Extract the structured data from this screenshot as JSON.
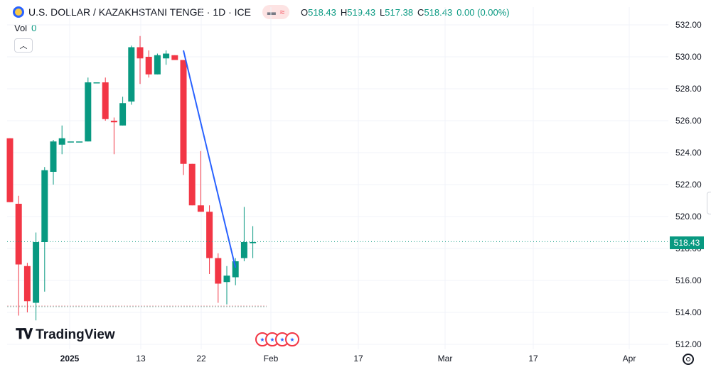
{
  "header": {
    "title": "U.S. DOLLAR / KAZAKHSTANI TENGE · 1D · ICE",
    "ohlc": [
      {
        "key": "O",
        "value": "518.43"
      },
      {
        "key": "H",
        "value": "519.43"
      },
      {
        "key": "L",
        "value": "517.38"
      },
      {
        "key": "C",
        "value": "518.43"
      }
    ],
    "change": "0.00 (0.00%)"
  },
  "volume": {
    "label": "Vol",
    "value": "0"
  },
  "collapse_icon": "chevron-up-icon",
  "price_label": "518.43",
  "logo_text": "TradingView",
  "colors": {
    "up": "#089981",
    "down": "#f23645",
    "trendline": "#2962ff",
    "grid": "#f0f3fa"
  },
  "chart_data": {
    "type": "candlestick",
    "title": "U.S. DOLLAR / KAZAKHSTANI TENGE · 1D · ICE",
    "ylim": [
      511.4,
      533
    ],
    "y_ticks": [
      "532.00",
      "530.00",
      "528.00",
      "526.00",
      "524.00",
      "522.00",
      "520.00",
      "518.00",
      "516.00",
      "514.00",
      "512.00"
    ],
    "x_ticks": [
      {
        "label": "2025",
        "bold": true
      },
      {
        "label": "13",
        "bold": false
      },
      {
        "label": "22",
        "bold": false
      },
      {
        "label": "Feb",
        "bold": false
      },
      {
        "label": "17",
        "bold": false
      },
      {
        "label": "Mar",
        "bold": false
      },
      {
        "label": "17",
        "bold": false
      },
      {
        "label": "Apr",
        "bold": false
      }
    ],
    "candles": [
      {
        "o": 524.9,
        "h": 524.9,
        "l": 520.9,
        "c": 520.9
      },
      {
        "o": 520.8,
        "h": 521.3,
        "l": 513.8,
        "c": 517.0
      },
      {
        "o": 516.9,
        "h": 517.1,
        "l": 514.0,
        "c": 514.7
      },
      {
        "o": 514.6,
        "h": 519.0,
        "l": 513.5,
        "c": 518.4
      },
      {
        "o": 518.4,
        "h": 523.1,
        "l": 515.3,
        "c": 522.9
      },
      {
        "o": 522.8,
        "h": 524.8,
        "l": 522.0,
        "c": 524.7
      },
      {
        "o": 524.5,
        "h": 525.7,
        "l": 523.9,
        "c": 524.9
      },
      {
        "o": 524.7,
        "h": 524.7,
        "l": 524.7,
        "c": 524.7
      },
      {
        "o": 524.7,
        "h": 524.7,
        "l": 524.7,
        "c": 524.7
      },
      {
        "o": 524.7,
        "h": 528.7,
        "l": 524.7,
        "c": 528.4
      },
      {
        "o": 528.4,
        "h": 528.4,
        "l": 528.4,
        "c": 528.4
      },
      {
        "o": 528.4,
        "h": 528.7,
        "l": 526.0,
        "c": 526.1
      },
      {
        "o": 526.0,
        "h": 526.2,
        "l": 523.9,
        "c": 525.9
      },
      {
        "o": 525.7,
        "h": 527.5,
        "l": 525.7,
        "c": 527.1
      },
      {
        "o": 527.2,
        "h": 530.7,
        "l": 527.0,
        "c": 530.6
      },
      {
        "o": 530.6,
        "h": 531.3,
        "l": 528.3,
        "c": 529.9
      },
      {
        "o": 530.0,
        "h": 530.4,
        "l": 528.7,
        "c": 528.9
      },
      {
        "o": 528.9,
        "h": 530.2,
        "l": 528.9,
        "c": 530.1
      },
      {
        "o": 529.9,
        "h": 530.4,
        "l": 529.5,
        "c": 530.2
      },
      {
        "o": 530.1,
        "h": 530.1,
        "l": 529.8,
        "c": 529.8
      },
      {
        "o": 529.8,
        "h": 529.8,
        "l": 522.6,
        "c": 523.3
      },
      {
        "o": 523.3,
        "h": 523.3,
        "l": 520.7,
        "c": 520.7
      },
      {
        "o": 520.7,
        "h": 524.1,
        "l": 520.3,
        "c": 520.3
      },
      {
        "o": 520.3,
        "h": 520.7,
        "l": 516.4,
        "c": 517.4
      },
      {
        "o": 517.4,
        "h": 517.7,
        "l": 514.6,
        "c": 515.8
      },
      {
        "o": 515.9,
        "h": 516.9,
        "l": 514.5,
        "c": 516.3
      },
      {
        "o": 516.2,
        "h": 517.4,
        "l": 515.7,
        "c": 517.2
      },
      {
        "o": 517.4,
        "h": 520.6,
        "l": 517.2,
        "c": 518.4
      },
      {
        "o": 518.4,
        "h": 519.4,
        "l": 517.4,
        "c": 518.4
      }
    ],
    "baseline": 514.4,
    "trendline": [
      {
        "x": 20,
        "y": 530.4
      },
      {
        "x": 26,
        "y": 516.8
      }
    ]
  }
}
